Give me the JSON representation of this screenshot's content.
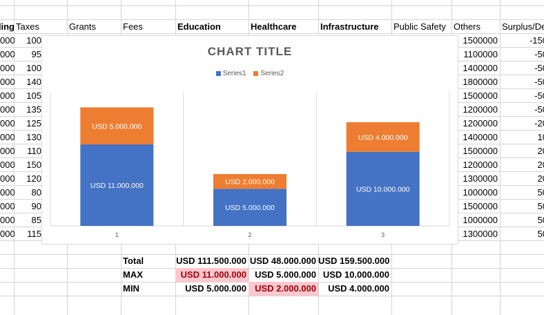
{
  "headers": {
    "spend": "Spending",
    "taxes": "Taxes",
    "grants": "Grants",
    "fees": "Fees",
    "education": "Education",
    "healthcare": "Healthcare",
    "infrastructure": "Infrastructure",
    "public_safety": "Public Safety",
    "others": "Others",
    "surplus": "Surplus/Deficit"
  },
  "col_a": [
    "000",
    "000",
    "000",
    "000",
    "000",
    "000",
    "000",
    "000",
    "000",
    "000",
    "000",
    "000",
    "000",
    "000",
    "000"
  ],
  "col_b": [
    "100",
    "95",
    "100",
    "140",
    "105",
    "135",
    "125",
    "130",
    "110",
    "150",
    "120",
    "80",
    "90",
    "85",
    "115"
  ],
  "others": [
    "1500000",
    "1100000",
    "1400000",
    "1800000",
    "1500000",
    "1200000",
    "1200000",
    "1400000",
    "1500000",
    "1200000",
    "1300000",
    "1000000",
    "1500000",
    "1000000",
    "1300000"
  ],
  "surplus": [
    "-150",
    "-50",
    "-50",
    "-50",
    "-50",
    "-50",
    "-20",
    "10",
    "20",
    "20",
    "20",
    "50",
    "50",
    "50",
    "50"
  ],
  "summary": {
    "total_label": "Total",
    "max_label": "MAX",
    "min_label": "MIN",
    "total": [
      "USD 111.500.000",
      "USD 48.000.000",
      "USD 159.500.000"
    ],
    "max": [
      "USD 11.000.000",
      "USD 5.000.000",
      "USD 10.000.000"
    ],
    "min": [
      "USD 5.000.000",
      "USD 2.000.000",
      "USD 4.000.000"
    ]
  },
  "chart_data": {
    "type": "bar",
    "stacked": true,
    "title": "CHART TITLE",
    "categories": [
      "1",
      "2",
      "3"
    ],
    "series": [
      {
        "name": "Series1",
        "values": [
          11000000,
          5000000,
          10000000
        ],
        "labels": [
          "USD 11.000.000",
          "USD 5.000.000",
          "USD 10.000.000"
        ],
        "color": "#4472c4"
      },
      {
        "name": "Series2",
        "values": [
          5000000,
          2000000,
          4000000
        ],
        "labels": [
          "USD 5.000.000",
          "USD 2.000.000",
          "USD 4.000.000"
        ],
        "color": "#ed7d31"
      }
    ],
    "ylim": [
      0,
      18000000
    ],
    "legend": "top",
    "grid": "vertical"
  },
  "colors": {
    "highlight_fill": "#ffc7ce",
    "highlight_text": "#9c0006"
  }
}
